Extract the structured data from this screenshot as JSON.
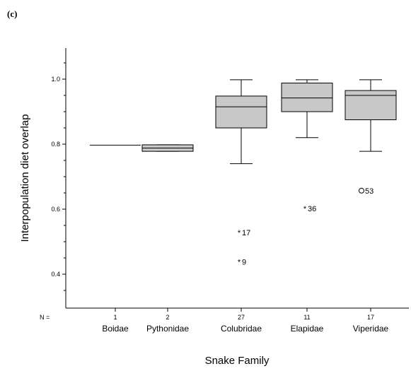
{
  "panel_label": "(c)",
  "chart_data": {
    "type": "boxplot",
    "title": "",
    "xlabel": "Snake Family",
    "ylabel": "Interpopulation diet overlap",
    "ylim": [
      0.32,
      1.1
    ],
    "yticks": [
      "0.4",
      "0.6",
      "0.8",
      "1.0"
    ],
    "n_label": "N =",
    "grid": false,
    "boxes": [
      {
        "category": "Boidae",
        "n": "1",
        "whisker_low": 0.797,
        "q1": 0.797,
        "median": 0.797,
        "q3": 0.797,
        "whisker_high": 0.797,
        "outliers": []
      },
      {
        "category": "Pythonidae",
        "n": "2",
        "whisker_low": 0.778,
        "q1": 0.778,
        "median": 0.788,
        "q3": 0.798,
        "whisker_high": 0.798,
        "outliers": []
      },
      {
        "category": "Colubridae",
        "n": "27",
        "whisker_low": 0.74,
        "q1": 0.85,
        "median": 0.915,
        "q3": 0.948,
        "whisker_high": 0.998,
        "outliers": [
          {
            "value": 0.528,
            "label": "17",
            "marker": "*"
          },
          {
            "value": 0.438,
            "label": "9",
            "marker": "*"
          }
        ]
      },
      {
        "category": "Elapidae",
        "n": "11",
        "whisker_low": 0.82,
        "q1": 0.9,
        "median": 0.942,
        "q3": 0.988,
        "whisker_high": 0.998,
        "outliers": [
          {
            "value": 0.602,
            "label": "36",
            "marker": "*"
          }
        ]
      },
      {
        "category": "Viperidae",
        "n": "17",
        "whisker_low": 0.778,
        "q1": 0.875,
        "median": 0.95,
        "q3": 0.965,
        "whisker_high": 0.998,
        "outliers": [
          {
            "value": 0.657,
            "label": "53",
            "marker": "o"
          }
        ]
      }
    ]
  }
}
